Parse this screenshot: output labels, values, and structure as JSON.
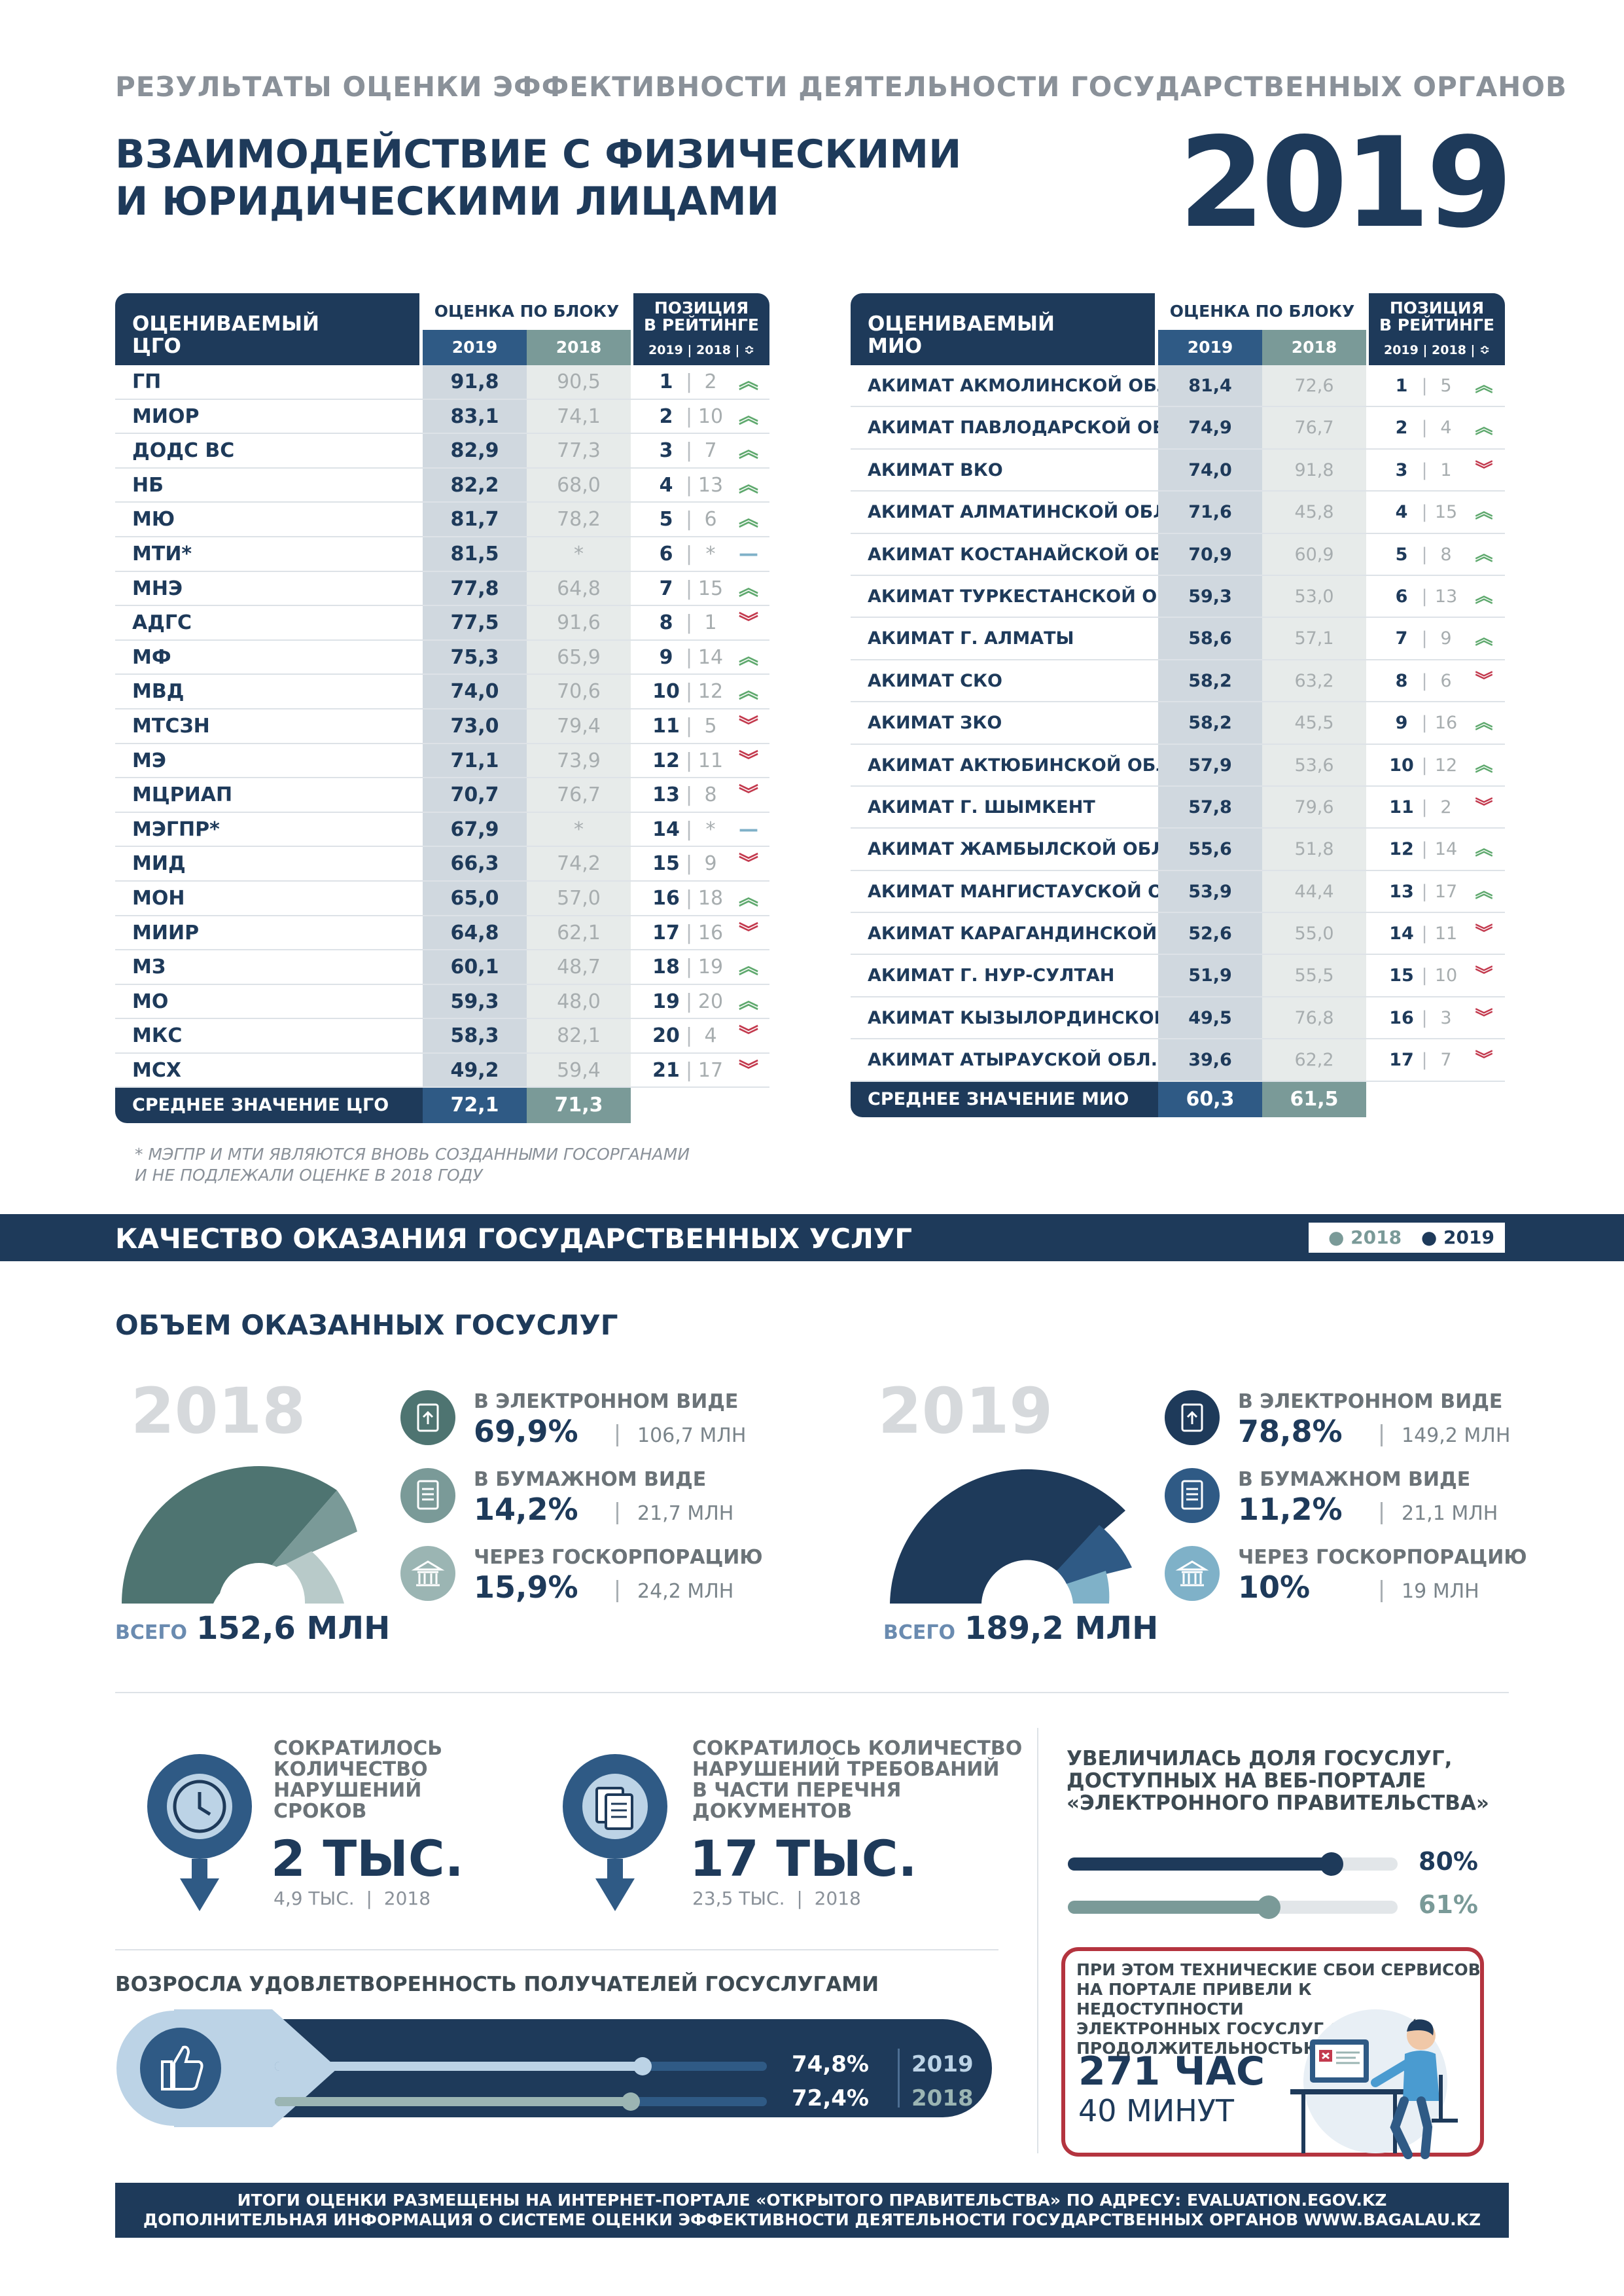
{
  "header": {
    "supertitle": "РЕЗУЛЬТАТЫ ОЦЕНКИ ЭФФЕКТИВНОСТИ ДЕЯТЕЛЬНОСТИ ГОСУДАРСТВЕННЫХ ОРГАНОВ",
    "title": "ВЗАИМОДЕЙСТВИЕ С ФИЗИЧЕСКИМИ\nИ ЮРИДИЧЕСКИМИ ЛИЦАМИ",
    "year": "2019"
  },
  "cgo_table": {
    "name_header": "ОЦЕНИВАЕМЫЙ\nЦГО",
    "score_header": "ОЦЕНКА ПО БЛОКУ",
    "year_2019": "2019",
    "year_2018": "2018",
    "pos_header": "ПОЗИЦИЯ\nВ РЕЙТИНГЕ",
    "pos_sub": "2019 | 2018 | ≎",
    "rows": [
      {
        "name": "ГП",
        "s19": "91,8",
        "s18": "90,5",
        "p19": "1",
        "p18": "2",
        "trend": "up"
      },
      {
        "name": "МИОР",
        "s19": "83,1",
        "s18": "74,1",
        "p19": "2",
        "p18": "10",
        "trend": "up"
      },
      {
        "name": "ДОДС ВС",
        "s19": "82,9",
        "s18": "77,3",
        "p19": "3",
        "p18": "7",
        "trend": "up"
      },
      {
        "name": "НБ",
        "s19": "82,2",
        "s18": "68,0",
        "p19": "4",
        "p18": "13",
        "trend": "up"
      },
      {
        "name": "МЮ",
        "s19": "81,7",
        "s18": "78,2",
        "p19": "5",
        "p18": "6",
        "trend": "up"
      },
      {
        "name": "МТИ*",
        "s19": "81,5",
        "s18": "*",
        "p19": "6",
        "p18": "*",
        "trend": "same"
      },
      {
        "name": "МНЭ",
        "s19": "77,8",
        "s18": "64,8",
        "p19": "7",
        "p18": "15",
        "trend": "up"
      },
      {
        "name": "АДГС",
        "s19": "77,5",
        "s18": "91,6",
        "p19": "8",
        "p18": "1",
        "trend": "down"
      },
      {
        "name": "МФ",
        "s19": "75,3",
        "s18": "65,9",
        "p19": "9",
        "p18": "14",
        "trend": "up"
      },
      {
        "name": "МВД",
        "s19": "74,0",
        "s18": "70,6",
        "p19": "10",
        "p18": "12",
        "trend": "up"
      },
      {
        "name": "МТСЗН",
        "s19": "73,0",
        "s18": "79,4",
        "p19": "11",
        "p18": "5",
        "trend": "down"
      },
      {
        "name": "МЭ",
        "s19": "71,1",
        "s18": "73,9",
        "p19": "12",
        "p18": "11",
        "trend": "down"
      },
      {
        "name": "МЦРИАП",
        "s19": "70,7",
        "s18": "76,7",
        "p19": "13",
        "p18": "8",
        "trend": "down"
      },
      {
        "name": "МЭГПР*",
        "s19": "67,9",
        "s18": "*",
        "p19": "14",
        "p18": "*",
        "trend": "same"
      },
      {
        "name": "МИД",
        "s19": "66,3",
        "s18": "74,2",
        "p19": "15",
        "p18": "9",
        "trend": "down"
      },
      {
        "name": "МОН",
        "s19": "65,0",
        "s18": "57,0",
        "p19": "16",
        "p18": "18",
        "trend": "up"
      },
      {
        "name": "МИИР",
        "s19": "64,8",
        "s18": "62,1",
        "p19": "17",
        "p18": "16",
        "trend": "down"
      },
      {
        "name": "МЗ",
        "s19": "60,1",
        "s18": "48,7",
        "p19": "18",
        "p18": "19",
        "trend": "up"
      },
      {
        "name": "МО",
        "s19": "59,3",
        "s18": "48,0",
        "p19": "19",
        "p18": "20",
        "trend": "up"
      },
      {
        "name": "МКС",
        "s19": "58,3",
        "s18": "82,1",
        "p19": "20",
        "p18": "4",
        "trend": "down"
      },
      {
        "name": "МСХ",
        "s19": "49,2",
        "s18": "59,4",
        "p19": "21",
        "p18": "17",
        "trend": "down"
      }
    ],
    "avg": {
      "name": "СРЕДНЕЕ ЗНАЧЕНИЕ ЦГО",
      "s19": "72,1",
      "s18": "71,3"
    }
  },
  "mio_table": {
    "name_header": "ОЦЕНИВАЕМЫЙ\nМИО",
    "score_header": "ОЦЕНКА ПО БЛОКУ",
    "year_2019": "2019",
    "year_2018": "2018",
    "pos_header": "ПОЗИЦИЯ\nВ РЕЙТИНГЕ",
    "pos_sub": "2019 | 2018 | ≎",
    "rows": [
      {
        "name": "АКИМАТ АКМОЛИНСКОЙ ОБЛ.",
        "s19": "81,4",
        "s18": "72,6",
        "p19": "1",
        "p18": "5",
        "trend": "up"
      },
      {
        "name": "АКИМАТ ПАВЛОДАРСКОЙ ОБЛ.",
        "s19": "74,9",
        "s18": "76,7",
        "p19": "2",
        "p18": "4",
        "trend": "up"
      },
      {
        "name": "АКИМАТ ВКО",
        "s19": "74,0",
        "s18": "91,8",
        "p19": "3",
        "p18": "1",
        "trend": "down"
      },
      {
        "name": "АКИМАТ АЛМАТИНСКОЙ ОБЛ.",
        "s19": "71,6",
        "s18": "45,8",
        "p19": "4",
        "p18": "15",
        "trend": "up"
      },
      {
        "name": "АКИМАТ КОСТАНАЙСКОЙ ОБЛ.",
        "s19": "70,9",
        "s18": "60,9",
        "p19": "5",
        "p18": "8",
        "trend": "up"
      },
      {
        "name": "АКИМАТ ТУРКЕСТАНСКОЙ ОБЛ.",
        "s19": "59,3",
        "s18": "53,0",
        "p19": "6",
        "p18": "13",
        "trend": "up"
      },
      {
        "name": "АКИМАТ Г. АЛМАТЫ",
        "s19": "58,6",
        "s18": "57,1",
        "p19": "7",
        "p18": "9",
        "trend": "up"
      },
      {
        "name": "АКИМАТ СКО",
        "s19": "58,2",
        "s18": "63,2",
        "p19": "8",
        "p18": "6",
        "trend": "down"
      },
      {
        "name": "АКИМАТ ЗКО",
        "s19": "58,2",
        "s18": "45,5",
        "p19": "9",
        "p18": "16",
        "trend": "up"
      },
      {
        "name": "АКИМАТ АКТЮБИНСКОЙ ОБЛ.",
        "s19": "57,9",
        "s18": "53,6",
        "p19": "10",
        "p18": "12",
        "trend": "up"
      },
      {
        "name": "АКИМАТ Г. ШЫМКЕНТ",
        "s19": "57,8",
        "s18": "79,6",
        "p19": "11",
        "p18": "2",
        "trend": "down"
      },
      {
        "name": "АКИМАТ ЖАМБЫЛСКОЙ ОБЛ.",
        "s19": "55,6",
        "s18": "51,8",
        "p19": "12",
        "p18": "14",
        "trend": "up"
      },
      {
        "name": "АКИМАТ МАНГИСТАУСКОЙ ОБЛ.",
        "s19": "53,9",
        "s18": "44,4",
        "p19": "13",
        "p18": "17",
        "trend": "up"
      },
      {
        "name": "АКИМАТ КАРАГАНДИНСКОЙ ОБЛ.",
        "s19": "52,6",
        "s18": "55,0",
        "p19": "14",
        "p18": "11",
        "trend": "down"
      },
      {
        "name": "АКИМАТ Г. НУР-СУЛТАН",
        "s19": "51,9",
        "s18": "55,5",
        "p19": "15",
        "p18": "10",
        "trend": "down"
      },
      {
        "name": "АКИМАТ КЫЗЫЛОРДИНСКОЙ ОБЛ.",
        "s19": "49,5",
        "s18": "76,8",
        "p19": "16",
        "p18": "3",
        "trend": "down"
      },
      {
        "name": "АКИМАТ АТЫРАУСКОЙ ОБЛ.",
        "s19": "39,6",
        "s18": "62,2",
        "p19": "17",
        "p18": "7",
        "trend": "down"
      }
    ],
    "avg": {
      "name": "СРЕДНЕЕ ЗНАЧЕНИЕ МИО",
      "s19": "60,3",
      "s18": "61,5"
    }
  },
  "footnote": "* МЭГПР И МТИ ЯВЛЯЮТСЯ ВНОВЬ СОЗДАННЫМИ ГОСОРГАНАМИ\nИ НЕ ПОДЛЕЖАЛИ ОЦЕНКЕ В 2018 ГОДУ",
  "services": {
    "band_title": "КАЧЕСТВО ОКАЗАНИЯ ГОСУДАРСТВЕННЫХ УСЛУГ",
    "legend_2018": "● 2018",
    "legend_2019": "● 2019",
    "volume_title": "ОБЪЕМ ОКАЗАННЫХ ГОСУСЛУГ",
    "total_label": "ВСЕГО",
    "y2018": {
      "year": "2018",
      "total": "152,6 МЛН",
      "items": [
        {
          "label": "В ЭЛЕКТРОННОМ ВИДЕ",
          "pct": "69,9%",
          "mln": "106,7 МЛН"
        },
        {
          "label": "В БУМАЖНОМ ВИДЕ",
          "pct": "14,2%",
          "mln": "21,7 МЛН"
        },
        {
          "label": "ЧЕРЕЗ ГОСКОРПОРАЦИЮ",
          "pct": "15,9%",
          "mln": "24,2 МЛН"
        }
      ]
    },
    "y2019": {
      "year": "2019",
      "total": "189,2 МЛН",
      "items": [
        {
          "label": "В ЭЛЕКТРОННОМ ВИДЕ",
          "pct": "78,8%",
          "mln": "149,2 МЛН"
        },
        {
          "label": "В БУМАЖНОМ ВИДЕ",
          "pct": "11,2%",
          "mln": "21,1 МЛН"
        },
        {
          "label": "ЧЕРЕЗ ГОСКОРПОРАЦИЮ",
          "pct": "10%",
          "mln": "19 МЛН"
        }
      ]
    },
    "colors": {
      "navy": "#1e3a5a",
      "mid": "#2f5a85",
      "light": "#7fb1c8",
      "teal": "#4e7471",
      "teal_light": "#9bb5b3"
    }
  },
  "stats": {
    "deadlines": {
      "label": "СОКРАТИЛОСЬ\nКОЛИЧЕСТВО\nНАРУШЕНИЙ\nСРОКОВ",
      "value": "2 ТЫС.",
      "prev": "4,9 ТЫС.",
      "prev_year": "2018"
    },
    "documents": {
      "label": "СОКРАТИЛОСЬ КОЛИЧЕСТВО\nНАРУШЕНИЙ ТРЕБОВАНИЙ\nВ ЧАСТИ ПЕРЕЧНЯ\nДОКУМЕНТОВ",
      "value": "17 ТЫС.",
      "prev": "23,5 ТЫС.",
      "prev_year": "2018"
    },
    "portal": {
      "title": "УВЕЛИЧИЛАСЬ ДОЛЯ ГОСУСЛУГ,\nДОСТУПНЫХ НА ВЕБ-ПОРТАЛЕ\n«ЭЛЕКТРОННОГО ПРАВИТЕЛЬСТВА»",
      "bars": [
        {
          "value": 80,
          "label": "80%"
        },
        {
          "value": 61,
          "label": "61%"
        }
      ]
    },
    "satisfaction": {
      "title": "ВОЗРОСЛА УДОВЛЕТВОРЕННОСТЬ ПОЛУЧАТЕЛЕЙ ГОСУСЛУГАМИ",
      "rows": [
        {
          "value": 74.8,
          "label": "74,8%",
          "year": "2019"
        },
        {
          "value": 72.4,
          "label": "72,4%",
          "year": "2018"
        }
      ]
    },
    "outage": {
      "text": "ПРИ ЭТОМ ТЕХНИЧЕСКИЕ СБОИ СЕРВИСОВ\nНА ПОРТАЛЕ ПРИВЕЛИ К НЕДОСТУПНОСТИ\nЭЛЕКТРОННЫХ ГОСУСЛУГ С ОБЩЕЙ\nПРОДОЛЖИТЕЛЬНОСТЬЮ",
      "hours": "271 ЧАС",
      "minutes": "40 МИНУТ"
    }
  },
  "footer": {
    "line1": "ИТОГИ ОЦЕНКИ РАЗМЕЩЕНЫ НА ИНТЕРНЕТ-ПОРТАЛЕ «ОТКРЫТОГО ПРАВИТЕЛЬСТВА» ПО АДРЕСУ: EVALUATION.EGOV.KZ",
    "line2": "ДОПОЛНИТЕЛЬНАЯ ИНФОРМАЦИЯ О СИСТЕМЕ ОЦЕНКИ ЭФФЕКТИВНОСТИ ДЕЯТЕЛЬНОСТИ ГОСУДАРСТВЕННЫХ ОРГАНОВ WWW.BAGALAU.KZ"
  }
}
